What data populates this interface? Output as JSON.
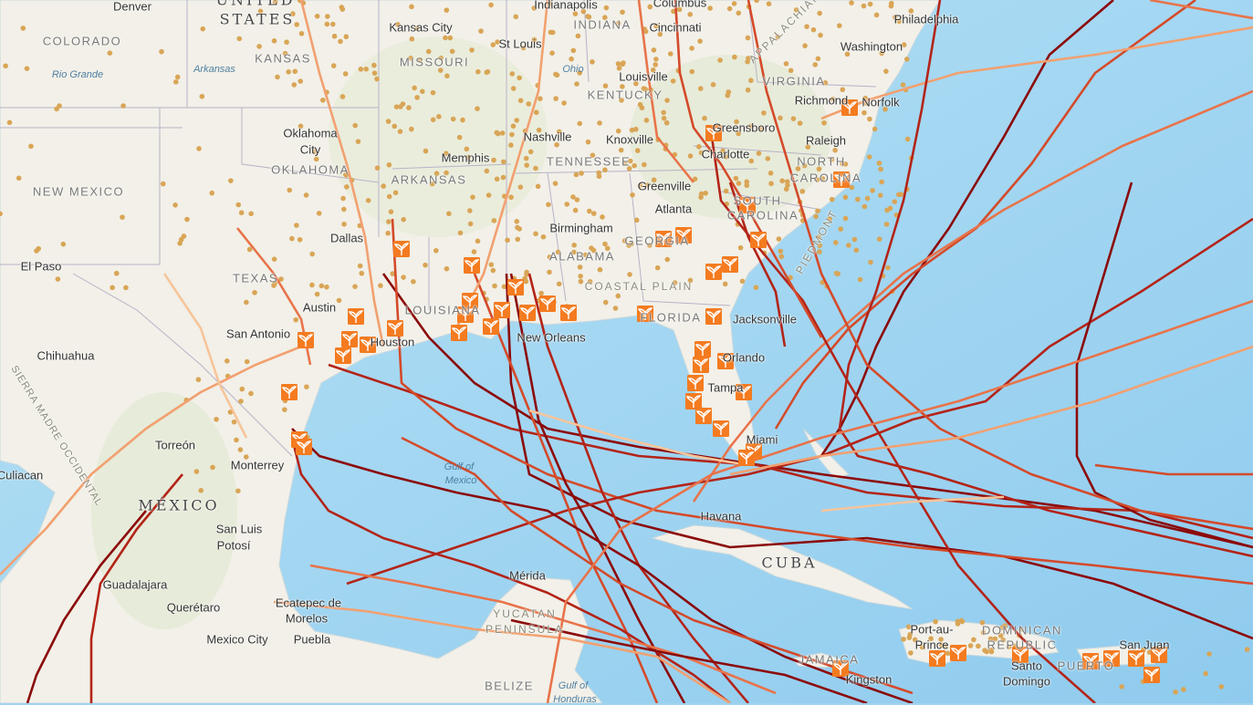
{
  "map": {
    "colors": {
      "water": "#a3d6f1",
      "water_deep": "#8cc8ec",
      "land": "#f2f0e8",
      "land_green": "#dfe8cf",
      "border": "#b8b2c8",
      "dot": "#d9a556",
      "icon": "#f47b20",
      "icon_dark": "#e8601a"
    },
    "icon_name": "plant-sprout-icon",
    "track_colors": [
      "#8b0a0a",
      "#b32418",
      "#d44a2a",
      "#e8734a",
      "#f2a070",
      "#f7c49a"
    ],
    "labels": [
      {
        "text": "Denver",
        "type": "city"
      },
      {
        "text": "UNITED",
        "type": "country"
      },
      {
        "text": "STATES",
        "type": "country"
      },
      {
        "text": "COLORADO",
        "type": "state"
      },
      {
        "text": "KANSAS",
        "type": "state"
      },
      {
        "text": "Kansas City",
        "type": "city"
      },
      {
        "text": "St Louis",
        "type": "city"
      },
      {
        "text": "MISSOURI",
        "type": "state"
      },
      {
        "text": "Indianapolis",
        "type": "city"
      },
      {
        "text": "INDIANA",
        "type": "state"
      },
      {
        "text": "Cincinnati",
        "type": "city"
      },
      {
        "text": "Columbus",
        "type": "city"
      },
      {
        "text": "Philadelphia",
        "type": "city"
      },
      {
        "text": "Washington",
        "type": "city"
      },
      {
        "text": "Louisville",
        "type": "city"
      },
      {
        "text": "KENTUCKY",
        "type": "state"
      },
      {
        "text": "VIRGINIA",
        "type": "state"
      },
      {
        "text": "Richmond",
        "type": "city"
      },
      {
        "text": "Norfolk",
        "type": "city"
      },
      {
        "text": "Arkansas",
        "type": "water"
      },
      {
        "text": "Rio Grande",
        "type": "water"
      },
      {
        "text": "Ohio",
        "type": "water"
      },
      {
        "text": "Oklahoma",
        "type": "city"
      },
      {
        "text": "City",
        "type": "city"
      },
      {
        "text": "OKLAHOMA",
        "type": "state"
      },
      {
        "text": "Memphis",
        "type": "city"
      },
      {
        "text": "Nashville",
        "type": "city"
      },
      {
        "text": "Knoxville",
        "type": "city"
      },
      {
        "text": "TENNESSEE",
        "type": "state"
      },
      {
        "text": "Greensboro",
        "type": "city"
      },
      {
        "text": "Charlotte",
        "type": "city"
      },
      {
        "text": "Raleigh",
        "type": "city"
      },
      {
        "text": "NORTH",
        "type": "state"
      },
      {
        "text": "CAROLINA",
        "type": "state"
      },
      {
        "text": "NEW MEXICO",
        "type": "state"
      },
      {
        "text": "ARKANSAS",
        "type": "state"
      },
      {
        "text": "Greenville",
        "type": "city"
      },
      {
        "text": "SOUTH",
        "type": "state"
      },
      {
        "text": "CAROLINA",
        "type": "state"
      },
      {
        "text": "Atlanta",
        "type": "city"
      },
      {
        "text": "Birmingham",
        "type": "city"
      },
      {
        "text": "Dallas",
        "type": "city"
      },
      {
        "text": "ALABAMA",
        "type": "state"
      },
      {
        "text": "GEORGIA",
        "type": "state"
      },
      {
        "text": "El Paso",
        "type": "city"
      },
      {
        "text": "TEXAS",
        "type": "state"
      },
      {
        "text": "LOUISIANA",
        "type": "state"
      },
      {
        "text": "COASTAL PLAIN",
        "type": "rng"
      },
      {
        "text": "Austin",
        "type": "city"
      },
      {
        "text": "San Antonio",
        "type": "city"
      },
      {
        "text": "Houston",
        "type": "city"
      },
      {
        "text": "New Orleans",
        "type": "city"
      },
      {
        "text": "FLORIDA",
        "type": "state"
      },
      {
        "text": "Jacksonville",
        "type": "city"
      },
      {
        "text": "Chihuahua",
        "type": "city"
      },
      {
        "text": "Orlando",
        "type": "city"
      },
      {
        "text": "Tampa",
        "type": "city"
      },
      {
        "text": "Torreón",
        "type": "city"
      },
      {
        "text": "Monterrey",
        "type": "city"
      },
      {
        "text": "Miami",
        "type": "city"
      },
      {
        "text": "Gulf of",
        "type": "water"
      },
      {
        "text": "Mexico",
        "type": "water"
      },
      {
        "text": "Culiacan",
        "type": "city"
      },
      {
        "text": "MÉXICO",
        "type": "country"
      },
      {
        "text": "Havana",
        "type": "city"
      },
      {
        "text": "San Luis",
        "type": "city"
      },
      {
        "text": "Potosí",
        "type": "city"
      },
      {
        "text": "CUBA",
        "type": "country"
      },
      {
        "text": "Guadalajara",
        "type": "city"
      },
      {
        "text": "Mérida",
        "type": "city"
      },
      {
        "text": "Querétaro",
        "type": "city"
      },
      {
        "text": "Ecatepec de",
        "type": "city"
      },
      {
        "text": "Morelos",
        "type": "city"
      },
      {
        "text": "YUCATAN",
        "type": "rng"
      },
      {
        "text": "PENINSULA",
        "type": "rng"
      },
      {
        "text": "Port-au-",
        "type": "city"
      },
      {
        "text": "Prince",
        "type": "city"
      },
      {
        "text": "DOMINICAN",
        "type": "state"
      },
      {
        "text": "REPUBLIC",
        "type": "state"
      },
      {
        "text": "San Juan",
        "type": "city"
      },
      {
        "text": "Mexico City",
        "type": "city"
      },
      {
        "text": "Puebla",
        "type": "city"
      },
      {
        "text": "JAMAICA",
        "type": "state"
      },
      {
        "text": "Kingston",
        "type": "city"
      },
      {
        "text": "Santo",
        "type": "city"
      },
      {
        "text": "Domingo",
        "type": "city"
      },
      {
        "text": "PUERTO",
        "type": "state"
      },
      {
        "text": "BELIZE",
        "type": "state"
      },
      {
        "text": "Gulf of",
        "type": "water"
      },
      {
        "text": "Honduras",
        "type": "water"
      },
      {
        "text": "APPALACHIAN",
        "type": "rng"
      },
      {
        "text": "PIEDMONT",
        "type": "rng"
      },
      {
        "text": "SIERRA MADRE OCCIDENTAL",
        "type": "rng"
      }
    ]
  }
}
